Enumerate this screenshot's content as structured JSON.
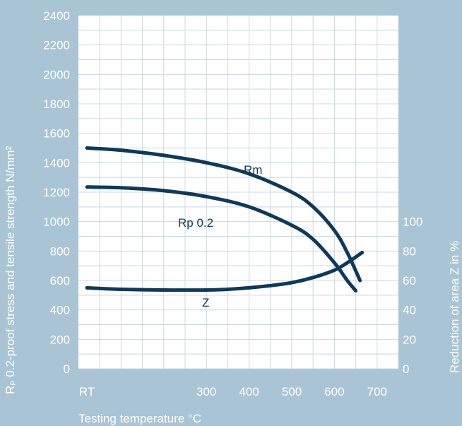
{
  "chart_data": {
    "type": "line",
    "xlabel": "Testing temperature °C",
    "ylabel": "Rₚ 0.2-proof stress and tensile strength N/mm²",
    "y2label": "Reduction of area Z in %",
    "x_ticks": [
      "RT",
      "300",
      "400",
      "500",
      "600",
      "700"
    ],
    "x_tick_values": [
      20,
      300,
      400,
      500,
      600,
      700
    ],
    "xlim": [
      0,
      750
    ],
    "ylim": [
      0,
      2400
    ],
    "y_ticks": [
      0,
      200,
      400,
      600,
      800,
      1000,
      1200,
      1400,
      1600,
      1800,
      2000,
      2200,
      2400
    ],
    "y2lim": [
      0,
      240
    ],
    "y2_ticks": [
      0,
      20,
      40,
      60,
      80,
      100
    ],
    "grid": true,
    "colors": {
      "background": "#a9c4d5",
      "plot_area": "#ffffff",
      "grid": "#c9d8e2",
      "curve": "#0d3a5c",
      "text": "#ffffff"
    },
    "series": [
      {
        "name": "Rm",
        "axis": "left",
        "x": [
          20,
          100,
          200,
          300,
          400,
          500,
          550,
          600,
          630,
          660
        ],
        "y": [
          1500,
          1485,
          1450,
          1400,
          1325,
          1200,
          1100,
          940,
          790,
          600
        ]
      },
      {
        "name": "Rp 0.2",
        "axis": "left",
        "x": [
          20,
          100,
          200,
          300,
          400,
          500,
          550,
          600,
          630,
          650
        ],
        "y": [
          1235,
          1230,
          1210,
          1170,
          1100,
          975,
          880,
          720,
          600,
          530
        ]
      },
      {
        "name": "Z",
        "axis": "right",
        "x": [
          20,
          100,
          200,
          300,
          350,
          400,
          450,
          500,
          550,
          600,
          630,
          665
        ],
        "y": [
          55,
          54,
          53.5,
          53.5,
          54,
          55,
          56.5,
          58.5,
          62,
          67,
          72,
          79
        ]
      }
    ]
  }
}
